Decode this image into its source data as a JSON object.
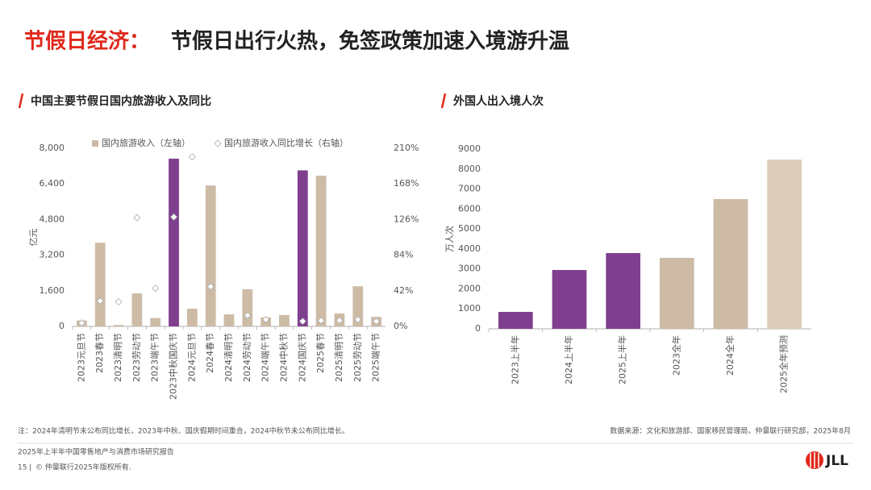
{
  "header": {
    "title_lead": "节假日经济：",
    "title_rest": "节假日出行火热，免签政策加速入境游升温"
  },
  "chart_data": [
    {
      "type": "bar",
      "title": "中国主要节假日国内旅游收入及同比",
      "y_label": "亿元",
      "categories": [
        "2023元旦节",
        "2023春节",
        "2023清明节",
        "2023劳动节",
        "2023端午节",
        "2023中秋国庆节",
        "2024元旦节",
        "2024春节",
        "2024清明节",
        "2024劳动节",
        "2024端午节",
        "2024中秋节",
        "2024国庆节",
        "2025春节",
        "2025清明节",
        "2025劳动节",
        "2025端午节"
      ],
      "series": [
        {
          "name": "国内旅游收入（左轴）",
          "color": "#cdbba6",
          "colors": [
            "#cdbba6",
            "#cdbba6",
            "#cdbba6",
            "#cdbba6",
            "#cdbba6",
            "#7f3f8e",
            "#cdbba6",
            "#cdbba6",
            "#cdbba6",
            "#cdbba6",
            "#cdbba6",
            "#cdbba6",
            "#7f3f8e",
            "#cdbba6",
            "#cdbba6",
            "#cdbba6",
            "#cdbba6"
          ],
          "values": [
            265,
            3758,
            65,
            1480,
            373,
            7535,
            797,
            6327,
            539,
            1669,
            403,
            511,
            7008,
            6770,
            578,
            1803,
            427
          ]
        },
        {
          "name": "国内旅游收入同比增长（右轴）",
          "type": "scatter",
          "marker": "diamond",
          "color": "#ffffff",
          "axis": "y2",
          "values": [
            4,
            30,
            29,
            128,
            45,
            129,
            200,
            47,
            null,
            13,
            8,
            null,
            6,
            7,
            7,
            8,
            6
          ]
        }
      ],
      "ylim": [
        0,
        8000
      ],
      "yticks": [
        0,
        {
          "value": 1600,
          "label": "1,600"
        },
        {
          "value": 3200,
          "label": "3,200"
        },
        {
          "value": 4800,
          "label": "4,800"
        },
        {
          "value": 6400,
          "label": "6,400"
        },
        {
          "value": 8000,
          "label": "8,000"
        }
      ],
      "y2lim": [
        0,
        210
      ],
      "y2ticks": [
        {
          "value": 0,
          "label": "0%"
        },
        {
          "value": 42,
          "label": "42%"
        },
        {
          "value": 84,
          "label": "84%"
        },
        {
          "value": 126,
          "label": "126%"
        },
        {
          "value": 168,
          "label": "168%"
        },
        {
          "value": 210,
          "label": "210%"
        }
      ]
    },
    {
      "type": "bar",
      "title": "外国人出入境人次",
      "y_label": "万人次",
      "categories": [
        "2023上半年",
        "2024上半年",
        "2025上半年",
        "2023全年",
        "2024全年",
        "2025全年预测"
      ],
      "values": [
        848,
        2946,
        3794,
        3552,
        6498,
        8476
      ],
      "colors": [
        "#7f3f8e",
        "#7f3f8e",
        "#7f3f8e",
        "#cdbba6",
        "#cdbba6",
        "#ddccb9"
      ],
      "ylim": [
        0,
        9000
      ],
      "yticks": [
        0,
        1000,
        2000,
        3000,
        4000,
        5000,
        6000,
        7000,
        8000,
        9000
      ]
    }
  ],
  "note": "注：2024年清明节未公布同比增长，2023年中秋、国庆假期时间重合，2024中秋节未公布同比增长。",
  "source": "数据来源：文化和旅游部、国家移民管理局，仲量联行研究部，2025年8月",
  "footer": {
    "report": "2025年上半年中国零售地产与消费市场研究报告",
    "page": "15",
    "copyright": "© 仲量联行2025年版权所有.",
    "logo": "JLL"
  }
}
